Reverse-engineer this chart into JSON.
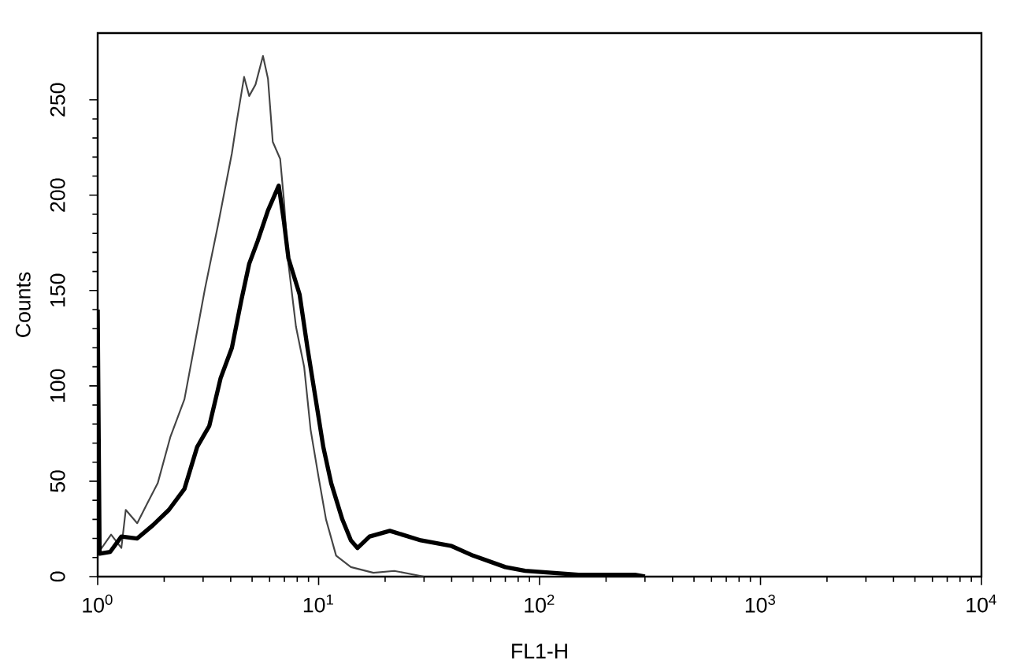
{
  "chart_data": {
    "type": "line",
    "xlabel": "FL1-H",
    "ylabel": "Counts",
    "log": "x",
    "xlim": [
      1,
      10000
    ],
    "ylim": [
      0,
      285
    ],
    "xticks": [
      {
        "value": 1,
        "label": "10$^{0}$"
      },
      {
        "value": 10,
        "label": "10$^{1}$"
      },
      {
        "value": 100,
        "label": "10$^{2}$"
      },
      {
        "value": 1000,
        "label": "10$^{3}$"
      },
      {
        "value": 10000,
        "label": "10$^{4}$"
      }
    ],
    "yticks": [
      0,
      50,
      100,
      150,
      200,
      250
    ],
    "series": [
      {
        "color": "#444444",
        "x": [
          1,
          1.15,
          1.28,
          1.34,
          1.51,
          1.67,
          1.87,
          2.13,
          2.47,
          2.68,
          3.06,
          3.5,
          4.05,
          4.25,
          4.6,
          4.85,
          5.18,
          5.6,
          5.9,
          6.2,
          6.7,
          6.97,
          7.3,
          7.9,
          8.6,
          9.2,
          10,
          10.8,
          12,
          14,
          17.7,
          22,
          30
        ],
        "values": [
          12,
          22,
          15,
          35,
          28,
          38,
          49,
          73,
          93,
          115,
          151,
          184,
          222,
          238,
          262,
          252,
          258,
          273,
          261,
          228,
          219,
          197,
          164,
          131,
          110,
          77,
          52,
          30,
          11,
          5,
          2,
          3,
          0
        ]
      },
      {
        "color": "#000000",
        "x": [
          1,
          1.01,
          1.02,
          1.14,
          1.28,
          1.51,
          1.78,
          2.1,
          2.47,
          2.82,
          3.2,
          3.6,
          4.05,
          4.47,
          4.85,
          5.3,
          5.9,
          6.6,
          6.97,
          7.3,
          8.2,
          8.9,
          9.7,
          10.5,
          11.4,
          12.8,
          14,
          15,
          17,
          21,
          29,
          40,
          50,
          70,
          86,
          150,
          270,
          300
        ],
        "values": [
          140,
          77,
          12,
          13,
          21,
          20,
          27,
          35,
          46,
          68,
          79,
          104,
          120,
          145,
          164,
          176,
          192,
          205,
          186,
          167,
          148,
          120,
          93,
          68,
          49,
          30,
          19,
          15,
          21,
          24,
          19,
          16,
          11,
          5,
          3,
          1,
          1,
          0
        ]
      }
    ]
  }
}
